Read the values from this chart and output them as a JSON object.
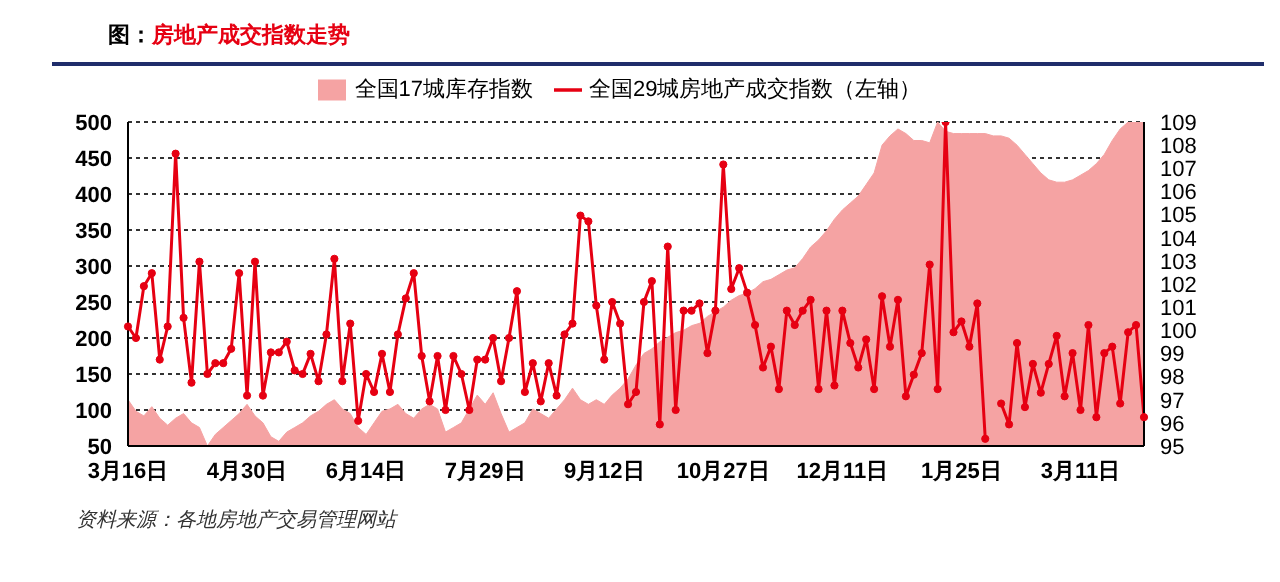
{
  "chart_data": {
    "type": "line",
    "title": "图：房地产成交指数走势",
    "annotations": [
      "资料来源：各地房地产交易管理网站"
    ],
    "categories": [
      "3月16日",
      null,
      null,
      null,
      null,
      null,
      null,
      null,
      null,
      null,
      null,
      null,
      null,
      null,
      null,
      "4月30日",
      null,
      null,
      null,
      null,
      null,
      null,
      null,
      null,
      null,
      null,
      null,
      null,
      null,
      null,
      "6月14日",
      null,
      null,
      null,
      null,
      null,
      null,
      null,
      null,
      null,
      null,
      null,
      null,
      null,
      null,
      "7月29日",
      null,
      null,
      null,
      null,
      null,
      null,
      null,
      null,
      null,
      null,
      null,
      null,
      null,
      null,
      "9月12日",
      null,
      null,
      null,
      null,
      null,
      null,
      null,
      null,
      null,
      null,
      null,
      null,
      null,
      null,
      "10月27日",
      null,
      null,
      null,
      null,
      null,
      null,
      null,
      null,
      null,
      null,
      null,
      null,
      null,
      null,
      "12月11日",
      null,
      null,
      null,
      null,
      null,
      null,
      null,
      null,
      null,
      null,
      null,
      null,
      null,
      null,
      "1月25日",
      null,
      null,
      null,
      null,
      null,
      null,
      null,
      null,
      null,
      null,
      null,
      null,
      null,
      null,
      "3月11日",
      null,
      null,
      null,
      null,
      null,
      null,
      null,
      null
    ],
    "ylim": [
      50,
      500
    ],
    "yticks": [
      50,
      100,
      150,
      200,
      250,
      300,
      350,
      400,
      450,
      500
    ],
    "y2lim": [
      95,
      109
    ],
    "y2ticks": [
      95,
      96,
      97,
      98,
      99,
      100,
      101,
      102,
      103,
      104,
      105,
      106,
      107,
      108,
      109
    ],
    "grid": "y",
    "legend": "top",
    "line_style": "solid",
    "series": [
      {
        "name": "全国17城库存指数",
        "type": "area",
        "axis": "y2",
        "color": "#f5a3a3",
        "values": [
          97.0,
          96.5,
          96.3,
          96.7,
          96.2,
          95.9,
          96.2,
          96.4,
          96.0,
          95.8,
          95.0,
          95.5,
          95.8,
          96.1,
          96.4,
          96.8,
          96.3,
          96.0,
          95.4,
          95.2,
          95.6,
          95.8,
          96.0,
          96.3,
          96.5,
          96.8,
          97.0,
          96.6,
          96.4,
          95.8,
          95.5,
          96.0,
          96.5,
          96.6,
          96.8,
          96.4,
          96.2,
          96.6,
          96.8,
          96.6,
          95.6,
          95.8,
          96.0,
          96.6,
          97.2,
          96.8,
          97.3,
          96.4,
          95.6,
          95.8,
          96.0,
          96.6,
          96.4,
          96.2,
          96.6,
          97.0,
          97.5,
          97.0,
          96.8,
          97.0,
          96.8,
          97.2,
          97.5,
          97.9,
          98.5,
          99.0,
          99.2,
          99.5,
          99.7,
          99.9,
          100.0,
          100.2,
          100.3,
          100.6,
          100.8,
          101.0,
          101.3,
          101.5,
          101.6,
          101.8,
          102.1,
          102.2,
          102.4,
          102.6,
          102.7,
          103.1,
          103.6,
          103.9,
          104.3,
          104.8,
          105.2,
          105.5,
          105.8,
          106.3,
          106.8,
          108.0,
          108.4,
          108.7,
          108.5,
          108.2,
          108.2,
          108.1,
          109.0,
          108.6,
          108.5,
          108.5,
          108.5,
          108.5,
          108.5,
          108.4,
          108.4,
          108.3,
          108.0,
          107.6,
          107.2,
          106.8,
          106.5,
          106.4,
          106.4,
          106.5,
          106.7,
          106.9,
          107.2,
          107.6,
          108.2,
          108.7,
          109.0,
          109.0,
          109.0
        ]
      },
      {
        "name": "全国29城房地产成交指数（左轴）",
        "axis": "y",
        "marker": "circle",
        "color": "#e60012",
        "values": [
          216,
          200,
          272,
          290,
          170,
          216,
          456,
          228,
          138,
          306,
          150,
          165,
          165,
          185,
          290,
          120,
          306,
          120,
          180,
          180,
          195,
          155,
          150,
          178,
          140,
          205,
          310,
          140,
          220,
          85,
          150,
          125,
          178,
          125,
          205,
          255,
          290,
          175,
          112,
          175,
          100,
          175,
          150,
          100,
          170,
          170,
          200,
          140,
          200,
          265,
          125,
          165,
          112,
          165,
          120,
          205,
          220,
          370,
          362,
          245,
          170,
          250,
          220,
          108,
          125,
          250,
          279,
          80,
          327,
          100,
          238,
          238,
          248,
          179,
          238,
          441,
          268,
          297,
          263,
          218,
          159,
          188,
          129,
          238,
          218,
          238,
          253,
          129,
          238,
          134,
          238,
          193,
          159,
          198,
          129,
          258,
          188,
          253,
          119,
          149,
          179,
          302,
          129,
          500,
          208,
          223,
          188,
          248,
          60,
          null,
          109,
          80,
          193,
          104,
          164,
          124,
          164,
          203,
          119,
          179,
          100,
          218,
          90,
          179,
          188,
          109,
          208,
          218,
          90
        ]
      }
    ]
  }
}
